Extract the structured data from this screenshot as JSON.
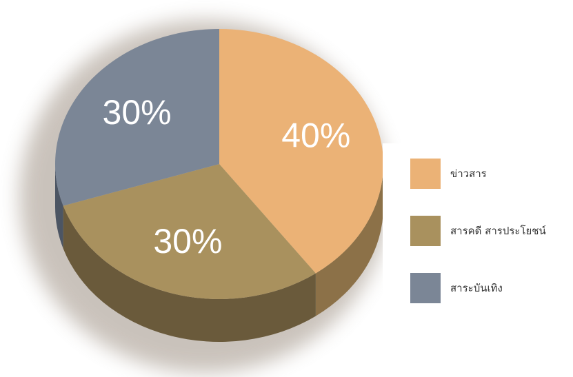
{
  "chart_data": {
    "type": "pie",
    "style": "3d",
    "categories": [
      "ข่าวสาร",
      "สารคดี สารประโยชน์",
      "สาระบันเทิง"
    ],
    "values": [
      40,
      30,
      30
    ],
    "value_labels": [
      "40%",
      "30%",
      "30%"
    ],
    "colors": [
      "#EBB276",
      "#A9915E",
      "#7B8696"
    ],
    "side_colors": [
      "#8C7148",
      "#6A5A3B",
      "#4C5563"
    ],
    "legend": {
      "placement": "right",
      "entries": [
        "ข่าวสาร",
        "สารคดี สารประโยชน์",
        "สาระบันเทิง"
      ]
    },
    "title": "",
    "xlabel": "",
    "ylabel": ""
  }
}
